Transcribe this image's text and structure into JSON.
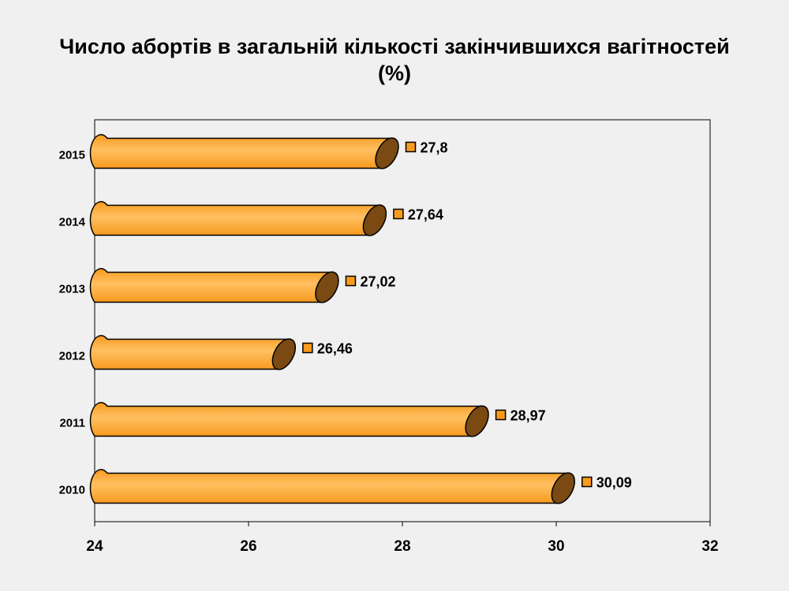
{
  "slide": {
    "title_line1": "Число абортів в загальній кількості закінчившихся вагітностей",
    "title_line2": "(%)"
  },
  "chart_data": {
    "type": "bar",
    "orientation": "horizontal",
    "title": "Число абортів в загальній кількості закінчившихся вагітностей (%)",
    "categories": [
      "2010",
      "2011",
      "2012",
      "2013",
      "2014",
      "2015"
    ],
    "values": [
      30.09,
      28.97,
      26.46,
      27.02,
      27.64,
      27.8
    ],
    "value_labels": [
      "30,09",
      "28,97",
      "26,46",
      "27,02",
      "27,64",
      "27,8"
    ],
    "xlim": [
      24,
      32
    ],
    "xticks": [
      "24",
      "26",
      "28",
      "30",
      "32"
    ],
    "grid": false,
    "legend": "none",
    "colors": {
      "bar_fill": "#f79a1e",
      "bar_fill_light": "#ffc061",
      "bar_end": "#7a4a12",
      "marker": "#f79a1e",
      "axis": "#000000",
      "background": "#f0f0f0"
    }
  }
}
